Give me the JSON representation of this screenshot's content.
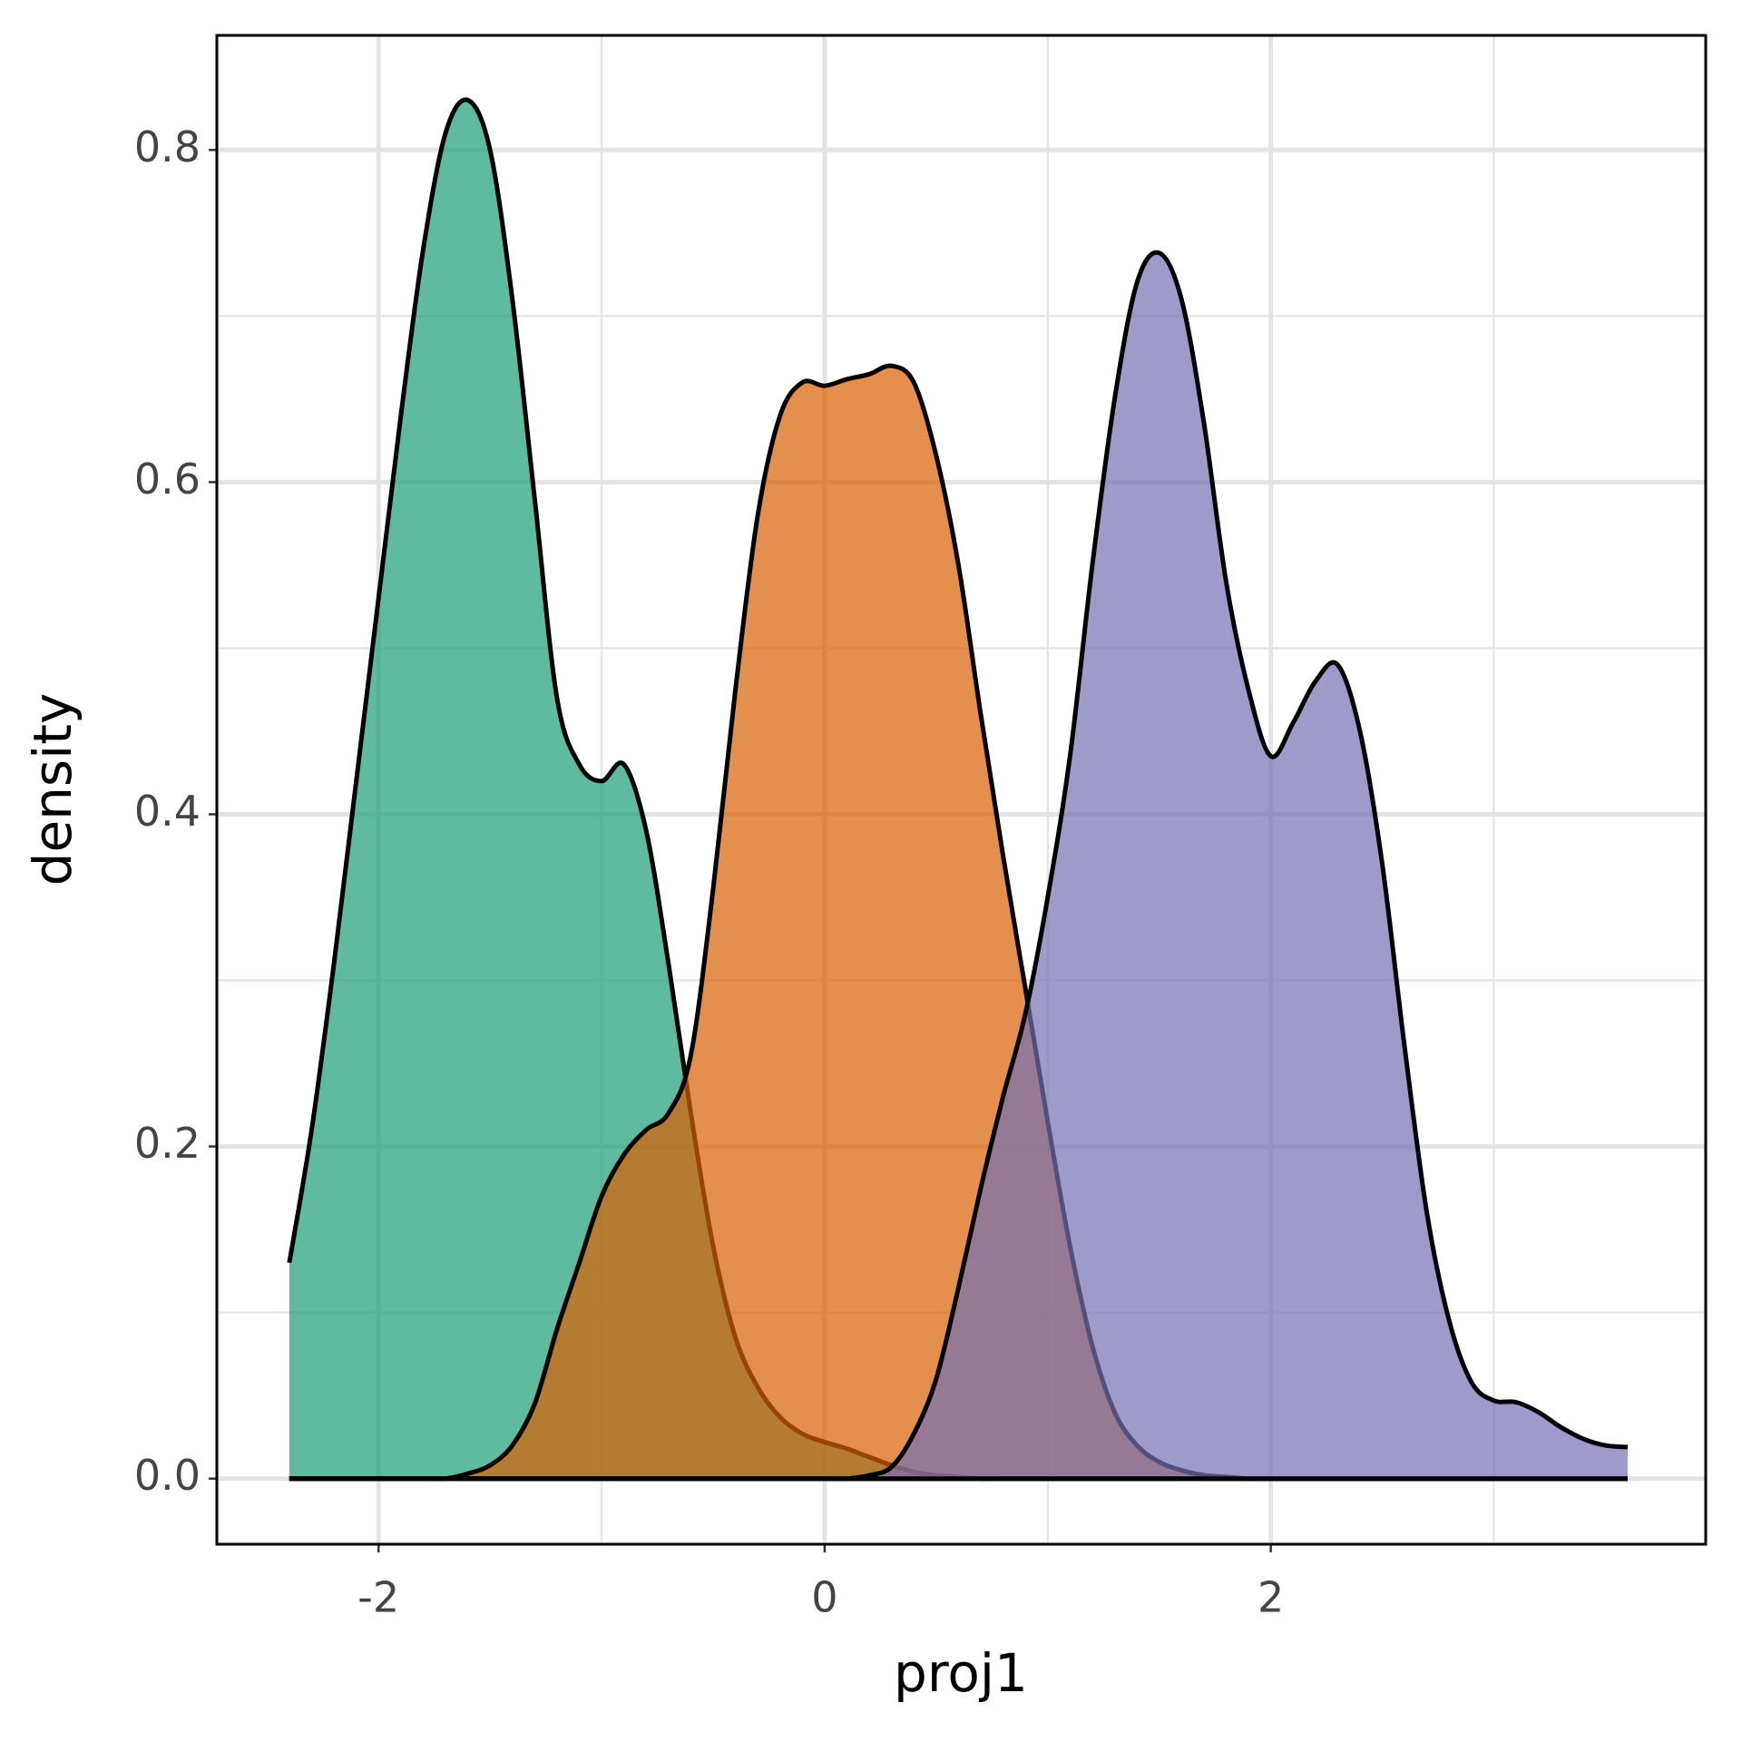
{
  "chart_data": {
    "type": "density",
    "x_label": "proj1",
    "y_label": "density",
    "x": [
      -2.4,
      -2.3,
      -2.2,
      -2.1,
      -2.0,
      -1.9,
      -1.8,
      -1.7,
      -1.6,
      -1.5,
      -1.4,
      -1.3,
      -1.2,
      -1.1,
      -1.0,
      -0.9,
      -0.8,
      -0.7,
      -0.6,
      -0.5,
      -0.4,
      -0.3,
      -0.2,
      -0.1,
      0.0,
      0.1,
      0.2,
      0.3,
      0.4,
      0.5,
      0.6,
      0.7,
      0.8,
      0.9,
      1.0,
      1.1,
      1.2,
      1.3,
      1.4,
      1.5,
      1.6,
      1.7,
      1.8,
      1.9,
      2.0,
      2.1,
      2.2,
      2.3,
      2.4,
      2.5,
      2.6,
      2.7,
      2.8,
      2.9,
      3.0,
      3.1,
      3.2,
      3.3,
      3.4,
      3.5,
      3.6
    ],
    "series": [
      {
        "color": "#1b9e77",
        "values": [
          0.13,
          0.21,
          0.31,
          0.42,
          0.53,
          0.64,
          0.74,
          0.81,
          0.83,
          0.8,
          0.71,
          0.59,
          0.47,
          0.43,
          0.42,
          0.43,
          0.39,
          0.31,
          0.22,
          0.14,
          0.085,
          0.055,
          0.037,
          0.027,
          0.022,
          0.018,
          0.013,
          0.008,
          0.004,
          0.002,
          0.001,
          0,
          0,
          0,
          0,
          0,
          0,
          0,
          0,
          0,
          0,
          0,
          0,
          0,
          0,
          0,
          0,
          0,
          0,
          0,
          0,
          0,
          0,
          0,
          0,
          0,
          0,
          0,
          0,
          0,
          0
        ]
      },
      {
        "color": "#d95f02",
        "values": [
          0,
          0,
          0,
          0,
          0,
          0,
          0,
          0,
          0.003,
          0.008,
          0.02,
          0.045,
          0.09,
          0.13,
          0.17,
          0.195,
          0.21,
          0.22,
          0.255,
          0.355,
          0.475,
          0.58,
          0.64,
          0.66,
          0.658,
          0.662,
          0.665,
          0.67,
          0.66,
          0.616,
          0.55,
          0.46,
          0.375,
          0.295,
          0.215,
          0.14,
          0.08,
          0.04,
          0.02,
          0.01,
          0.005,
          0.002,
          0.001,
          0,
          0,
          0,
          0,
          0,
          0,
          0,
          0,
          0,
          0,
          0,
          0,
          0,
          0,
          0,
          0,
          0,
          0
        ]
      },
      {
        "color": "#7570b3",
        "values": [
          0,
          0,
          0,
          0,
          0,
          0,
          0,
          0,
          0,
          0,
          0,
          0,
          0,
          0,
          0,
          0,
          0,
          0,
          0,
          0,
          0,
          0,
          0,
          0,
          0,
          0,
          0.002,
          0.007,
          0.027,
          0.06,
          0.115,
          0.175,
          0.23,
          0.28,
          0.35,
          0.435,
          0.55,
          0.65,
          0.72,
          0.738,
          0.71,
          0.636,
          0.54,
          0.475,
          0.435,
          0.455,
          0.48,
          0.49,
          0.45,
          0.37,
          0.26,
          0.16,
          0.095,
          0.058,
          0.047,
          0.046,
          0.04,
          0.031,
          0.024,
          0.02,
          0.019
        ]
      }
    ],
    "fill_opacity": 0.7,
    "xlim": [
      -2.725,
      3.95
    ],
    "ylim": [
      -0.0395,
      0.869
    ],
    "xticks": [
      -2,
      0,
      2
    ],
    "yticks": [
      {
        "value": 0,
        "label": "0.0"
      },
      0.2,
      0.4,
      0.6,
      0.8
    ],
    "x_minor_ticks": [
      -1,
      1,
      3
    ],
    "y_minor_ticks": [
      0.1,
      0.3,
      0.5,
      0.7
    ],
    "grid": true
  }
}
